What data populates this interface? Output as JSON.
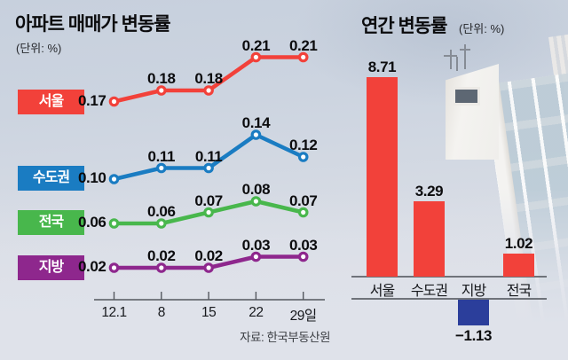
{
  "accent_colors": {
    "red": "#f2413a",
    "blue": "#1a7cc2",
    "green": "#48b74c",
    "purple": "#8e278d",
    "navy": "#2b3e9b"
  },
  "chart_data": [
    {
      "type": "line",
      "title": "아파트 매매가 변동률",
      "subtitle": "(단위: %)",
      "x": [
        "12.1",
        "8",
        "15",
        "22",
        "29일"
      ],
      "series": [
        {
          "name": "서울",
          "color": "#f2413a",
          "values": [
            0.17,
            0.18,
            0.18,
            0.21,
            0.21
          ]
        },
        {
          "name": "수도권",
          "color": "#1a7cc2",
          "values": [
            0.1,
            0.11,
            0.11,
            0.14,
            0.12
          ]
        },
        {
          "name": "전국",
          "color": "#48b74c",
          "values": [
            0.06,
            0.06,
            0.07,
            0.08,
            0.07
          ]
        },
        {
          "name": "지방",
          "color": "#8e278d",
          "values": [
            0.02,
            0.02,
            0.02,
            0.03,
            0.03
          ]
        }
      ],
      "source": "자료: 한국부동산원",
      "legend_position": "left",
      "grid": false,
      "value_labels": true
    },
    {
      "type": "bar",
      "title": "연간 변동률",
      "subtitle": "(단위: %)",
      "categories": [
        "서울",
        "수도권",
        "지방",
        "전국"
      ],
      "values": [
        8.71,
        3.29,
        -1.13,
        1.02
      ],
      "bar_colors": [
        "#f2413a",
        "#f2413a",
        "#2b3e9b",
        "#f2413a"
      ],
      "ylim": [
        -1.5,
        9.5
      ],
      "grid": false,
      "value_labels": true
    }
  ]
}
